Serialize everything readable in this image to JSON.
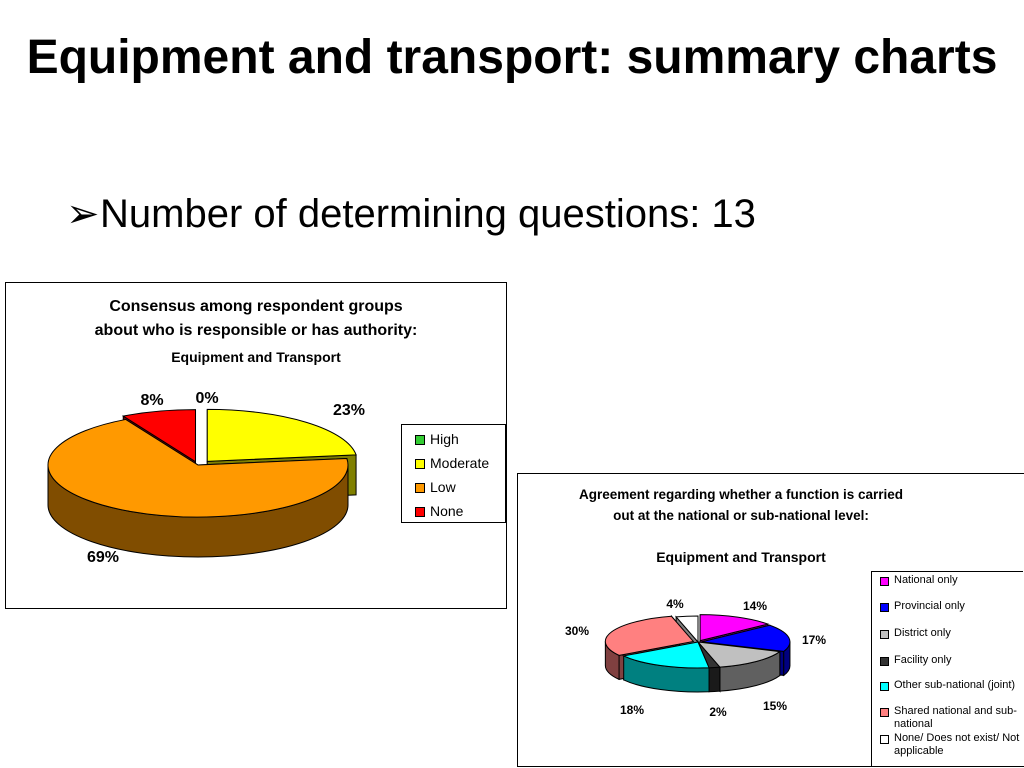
{
  "slide": {
    "title": "Equipment and transport: summary charts",
    "bullet_symbol": "➢",
    "bullet_text": "Number of determining questions: 13"
  },
  "chart_data": [
    {
      "type": "pie",
      "title_line1": "Consensus among respondent groups",
      "title_line2": "about who is responsible or has authority:",
      "subtitle": "Equipment and Transport",
      "legend_placement": "right",
      "categories": [
        "High",
        "Moderate",
        "Low",
        "None"
      ],
      "values": [
        0,
        23,
        69,
        8
      ],
      "labels": [
        "0%",
        "23%",
        "69%",
        "8%"
      ],
      "colors": [
        "#33cc33",
        "#ffff00",
        "#ff9900",
        "#ff0000"
      ]
    },
    {
      "type": "pie",
      "title_line1": "Agreement regarding whether a function is carried",
      "title_line2": "out at the national or sub-national level:",
      "subtitle": "Equipment and Transport",
      "legend_placement": "right",
      "categories": [
        "National only",
        "Provincial only",
        "District only",
        "Facility only",
        "Other sub-national (joint)",
        "Shared national and sub-national",
        "None/ Does not exist/ Not applicable"
      ],
      "values": [
        14,
        17,
        15,
        2,
        18,
        30,
        4
      ],
      "labels": [
        "14%",
        "17%",
        "15%",
        "2%",
        "18%",
        "30%",
        "4%"
      ],
      "colors": [
        "#ff00ff",
        "#0000ff",
        "#c0c0c0",
        "#333333",
        "#00ffff",
        "#ff8080",
        "#ffffff"
      ]
    }
  ]
}
